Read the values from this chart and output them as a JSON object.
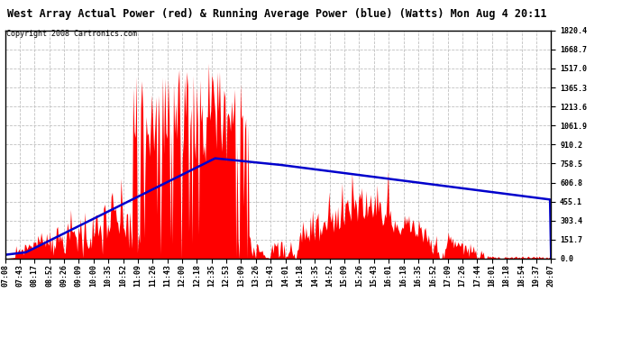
{
  "title": "West Array Actual Power (red) & Running Average Power (blue) (Watts) Mon Aug 4 20:11",
  "copyright": "Copyright 2008 Cartronics.com",
  "ymax": 1820.4,
  "ytick_values": [
    0.0,
    151.7,
    303.4,
    455.1,
    606.8,
    758.5,
    910.2,
    1061.9,
    1213.6,
    1365.3,
    1517.0,
    1668.7,
    1820.4
  ],
  "xtick_labels": [
    "07:08",
    "07:43",
    "08:17",
    "08:52",
    "09:26",
    "09:09",
    "10:00",
    "10:35",
    "10:52",
    "11:09",
    "11:26",
    "11:43",
    "12:00",
    "12:18",
    "12:35",
    "12:53",
    "13:09",
    "13:26",
    "13:43",
    "14:01",
    "14:18",
    "14:35",
    "14:52",
    "15:09",
    "15:26",
    "15:43",
    "16:01",
    "16:18",
    "16:35",
    "16:52",
    "17:09",
    "17:26",
    "17:44",
    "18:01",
    "18:18",
    "18:54",
    "19:37",
    "20:07"
  ],
  "bg_color": "#ffffff",
  "plot_bg": "#ffffff",
  "grid_color": "#c0c0c0",
  "red_color": "#ff0000",
  "blue_color": "#0000cc",
  "title_fontsize": 8.5,
  "copyright_fontsize": 6,
  "tick_fontsize": 6
}
